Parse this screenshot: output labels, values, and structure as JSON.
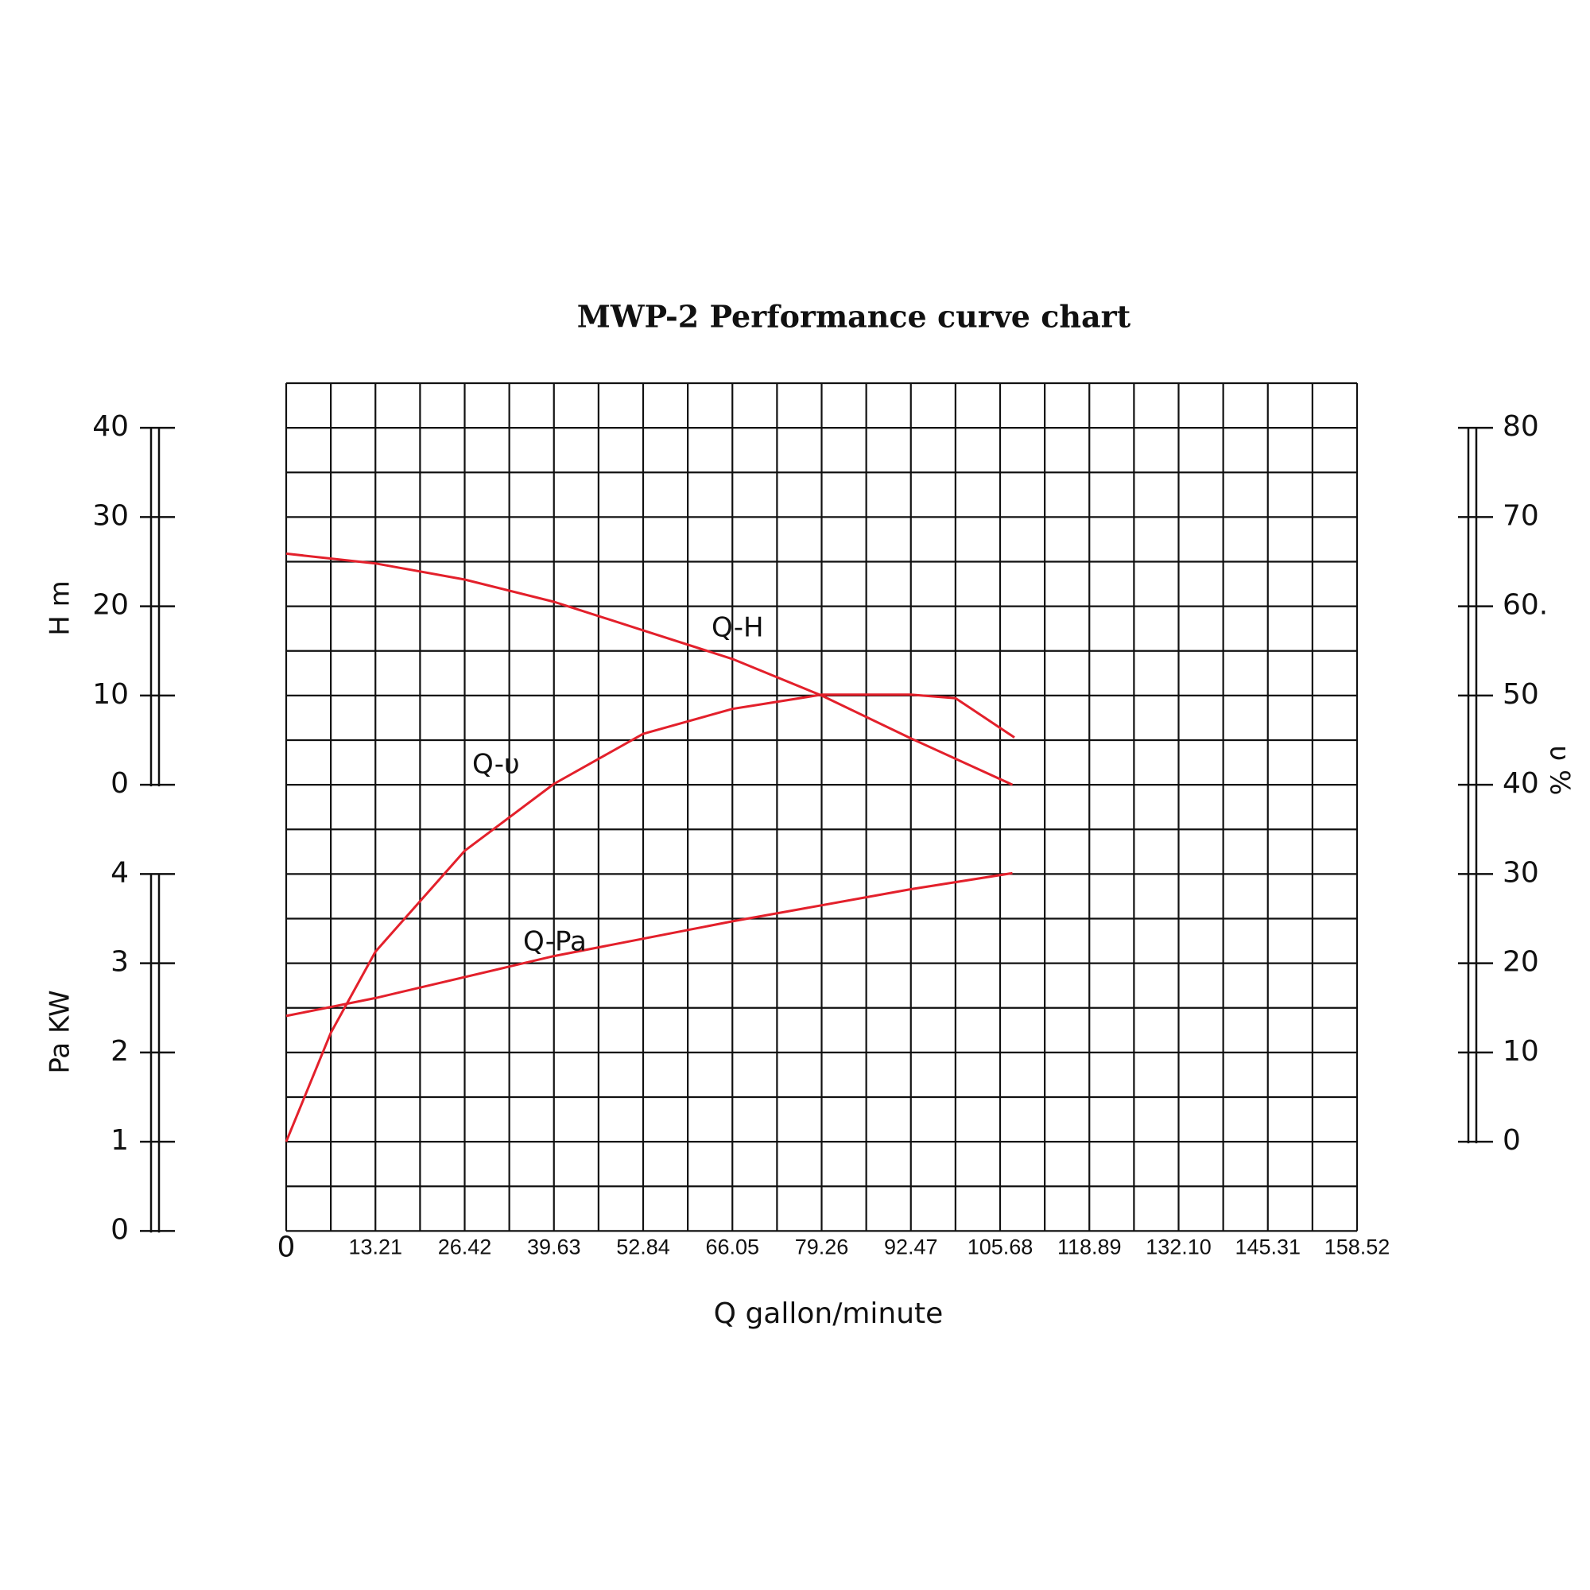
{
  "chart_data": {
    "type": "line",
    "title": "MWP-2 Performance curve chart",
    "xlabel": "Q gallon/minute",
    "ylabel": "H m",
    "y2label": "υ %",
    "y3label": "Pa KW",
    "xlim": [
      0,
      158.52
    ],
    "xticks": [
      0,
      13.21,
      26.42,
      39.63,
      52.84,
      66.05,
      79.26,
      92.47,
      105.68,
      118.89,
      {
        "value": 132.1,
        "label": "132.10"
      },
      145.31,
      158.52
    ],
    "ylim": [
      0,
      40
    ],
    "yticks": [
      0,
      10,
      20,
      30,
      40
    ],
    "y2lim": [
      0,
      80
    ],
    "y2ticks": [
      0,
      10,
      20,
      30,
      40,
      50,
      {
        "value": 60,
        "label": "60."
      },
      70,
      80
    ],
    "y3lim": [
      0,
      4
    ],
    "y3ticks": [
      0,
      1,
      2,
      3,
      4
    ],
    "grid": true,
    "series": [
      {
        "name": "Q-H",
        "color": "#e3202b",
        "axis": "y",
        "x": [
          0,
          13.21,
          26.42,
          39.63,
          52.84,
          66.05,
          79.26,
          92.47,
          107.5
        ],
        "values": [
          25.9,
          24.8,
          23.0,
          20.5,
          17.3,
          14.1,
          10.0,
          5.2,
          0
        ]
      },
      {
        "name": "Q-υ",
        "color": "#e3202b",
        "axis": "y2",
        "x": [
          0,
          6.6,
          13.21,
          26.42,
          39.63,
          52.84,
          66.05,
          79.26,
          92.47,
          99.08,
          107.8
        ],
        "values": [
          0,
          12.2,
          21.3,
          32.6,
          40.1,
          45.7,
          48.5,
          50.1,
          50.1,
          49.7,
          45.3
        ]
      },
      {
        "name": "Q-Pa",
        "color": "#e3202b",
        "axis": "y3",
        "x": [
          0,
          13.21,
          39.63,
          66.05,
          92.47,
          107.5
        ],
        "values": [
          2.41,
          2.61,
          3.08,
          3.47,
          3.83,
          4.01
        ]
      }
    ]
  }
}
